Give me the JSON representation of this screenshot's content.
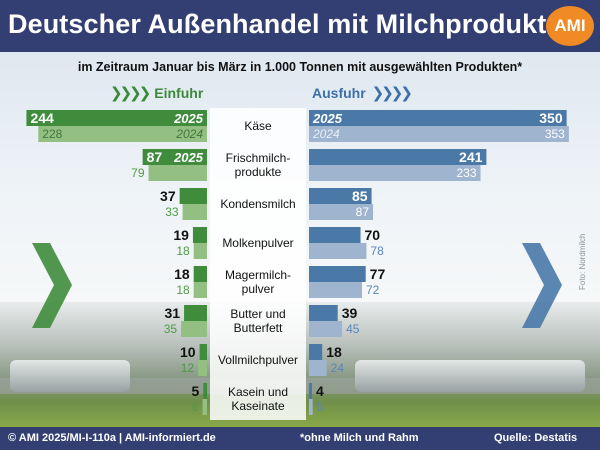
{
  "header": {
    "title": "Deutscher Außenhandel mit Milchprodukten",
    "logo": "AMI"
  },
  "footer": {
    "source_left": "© AMI 2025/MI-I-110a | AMI-informiert.de",
    "note": "*ohne Milch und Rahm",
    "source_right": "Quelle: Destatis"
  },
  "credit": "Foto: Nordmilch",
  "colors": {
    "import_2025": "#3f8c3c",
    "import_2024": "#93bf82",
    "export_2025": "#4a79a8",
    "export_2024": "#9fb4cf",
    "header": "#333f73"
  },
  "chart_data": {
    "type": "bar",
    "title": "Deutscher Außenhandel mit Milchprodukten",
    "subtitle": "im Zeitraum Januar bis März in 1.000 Tonnen mit ausgewählten Produkten*",
    "legend": {
      "import": "Einfuhr",
      "export": "Ausfuhr"
    },
    "year_labels": [
      "2025",
      "2024"
    ],
    "categories": [
      "Käse",
      "Frischmilch-\nprodukte",
      "Kondensmilch",
      "Molkenpulver",
      "Magermilch-\npulver",
      "Butter und\nButterfett",
      "Vollmilchpulver",
      "Kasein und\nKaseinate"
    ],
    "series": [
      {
        "name": "Einfuhr 2025",
        "values": [
          244,
          87,
          37,
          19,
          18,
          31,
          10,
          5
        ]
      },
      {
        "name": "Einfuhr 2024",
        "values": [
          228,
          79,
          33,
          18,
          18,
          35,
          12,
          6
        ]
      },
      {
        "name": "Ausfuhr 2025",
        "values": [
          350,
          241,
          85,
          70,
          77,
          39,
          18,
          4
        ]
      },
      {
        "name": "Ausfuhr 2024",
        "values": [
          353,
          233,
          87,
          78,
          72,
          45,
          24,
          5
        ]
      }
    ]
  }
}
